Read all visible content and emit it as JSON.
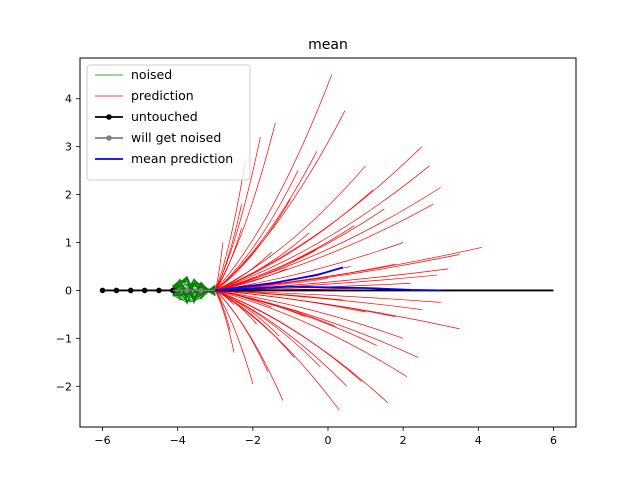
{
  "chart_data": {
    "type": "line",
    "title": "mean",
    "xlabel": "",
    "ylabel": "",
    "xlim": [
      -6.6,
      6.6
    ],
    "ylim": [
      -2.85,
      4.85
    ],
    "xticks": [
      -6,
      -4,
      -2,
      0,
      2,
      4,
      6
    ],
    "yticks": [
      -2,
      -1,
      0,
      1,
      2,
      3,
      4
    ],
    "grid": false,
    "legend_position": "top-left",
    "colors": {
      "noised": "#008000",
      "prediction": "#ff0000",
      "untouched": "#000000",
      "will_get_noised": "#808080",
      "mean_prediction": "#0000ff"
    },
    "legend": [
      {
        "label": "noised",
        "style": "thin-line",
        "color": "#008000"
      },
      {
        "label": "prediction",
        "style": "thin-line",
        "color": "#ff0000"
      },
      {
        "label": "untouched",
        "style": "line-marker",
        "color": "#000000"
      },
      {
        "label": "will get noised",
        "style": "line-marker",
        "color": "#808080"
      },
      {
        "label": "mean prediction",
        "style": "line",
        "color": "#0000ff"
      }
    ],
    "untouched": {
      "x": [
        -6.0,
        -5.63,
        -5.25,
        -4.88,
        -4.5,
        -4.13,
        -3.75,
        -3.38,
        -3.0,
        6.0
      ],
      "y": [
        0,
        0,
        0,
        0,
        0,
        0,
        0,
        0,
        0,
        0
      ],
      "marker_x": [
        -6.0,
        -5.63,
        -5.25,
        -4.88,
        -4.5,
        -4.13
      ]
    },
    "will_get_noised": {
      "x": [
        -4.13,
        -3.75,
        -3.38,
        -3.0
      ],
      "y": [
        0,
        0,
        0,
        0
      ],
      "marker_x": [
        -3.75,
        -3.38
      ]
    },
    "noised_band": {
      "x_start": -4.13,
      "x_end": -3.0,
      "y_amplitude": 0.3,
      "count": 40
    },
    "prediction_endpoints": [
      [
        0.1,
        4.5
      ],
      [
        0.45,
        3.75
      ],
      [
        -1.4,
        3.5
      ],
      [
        2.5,
        3.0
      ],
      [
        -1.8,
        3.2
      ],
      [
        -0.3,
        2.9
      ],
      [
        1.2,
        2.1
      ],
      [
        3.0,
        2.15
      ],
      [
        2.7,
        2.6
      ],
      [
        1.0,
        2.6
      ],
      [
        -2.2,
        2.7
      ],
      [
        -0.8,
        2.5
      ],
      [
        2.8,
        1.8
      ],
      [
        1.5,
        1.7
      ],
      [
        0.7,
        1.35
      ],
      [
        -1.0,
        1.9
      ],
      [
        -2.3,
        1.8
      ],
      [
        4.1,
        0.9
      ],
      [
        2.0,
        1.0
      ],
      [
        3.5,
        0.75
      ],
      [
        -0.5,
        1.2
      ],
      [
        1.8,
        0.55
      ],
      [
        3.2,
        0.45
      ],
      [
        0.6,
        0.5
      ],
      [
        2.9,
        0.32
      ],
      [
        -1.5,
        0.8
      ],
      [
        2.2,
        0.15
      ],
      [
        1.3,
        0.05
      ],
      [
        0.0,
        0.25
      ],
      [
        -1.1,
        0.45
      ],
      [
        3.0,
        -0.25
      ],
      [
        2.5,
        -0.4
      ],
      [
        1.8,
        -0.55
      ],
      [
        3.5,
        -0.8
      ],
      [
        2.0,
        -1.0
      ],
      [
        1.3,
        -1.15
      ],
      [
        0.2,
        -0.75
      ],
      [
        -0.6,
        -0.55
      ],
      [
        -1.5,
        -0.35
      ],
      [
        2.1,
        -1.8
      ],
      [
        1.6,
        -2.35
      ],
      [
        0.5,
        -2.0
      ],
      [
        0.3,
        -2.5
      ],
      [
        -1.2,
        -2.3
      ],
      [
        -2.0,
        -1.95
      ],
      [
        -1.6,
        -1.7
      ],
      [
        -0.9,
        -1.4
      ],
      [
        -2.5,
        -1.3
      ],
      [
        -1.3,
        -0.95
      ],
      [
        -0.2,
        -1.6
      ],
      [
        0.9,
        -1.9
      ],
      [
        2.4,
        -1.4
      ],
      [
        -1.9,
        -0.7
      ],
      [
        -2.5,
        -0.3
      ],
      [
        -2.3,
        1.3
      ],
      [
        -0.3,
        0.85
      ],
      [
        0.4,
        -0.2
      ],
      [
        1.0,
        -0.45
      ],
      [
        -2.8,
        1.0
      ],
      [
        -2.6,
        -0.85
      ]
    ],
    "mean_prediction": [
      {
        "x": [
          -3.0,
          -1.5,
          -0.3,
          0.4
        ],
        "y": [
          0.0,
          0.15,
          0.32,
          0.48
        ]
      },
      {
        "x": [
          -3.0,
          -1.0,
          1.0,
          2.2,
          3.0
        ],
        "y": [
          0.0,
          0.08,
          0.05,
          0.01,
          0.0
        ]
      }
    ]
  }
}
